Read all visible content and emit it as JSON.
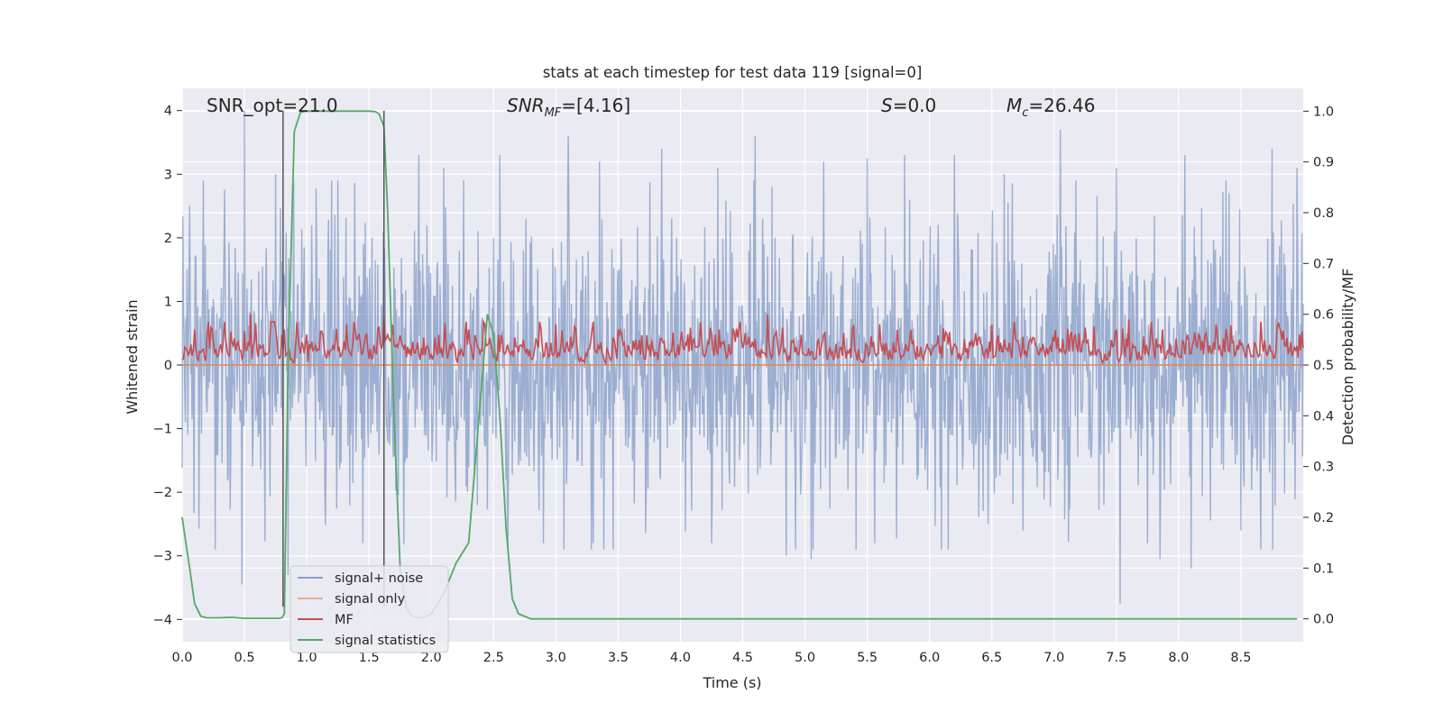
{
  "chart_data": {
    "type": "line",
    "title": "stats at each timestep for test data 119 [signal=0]",
    "xlabel": "Time (s)",
    "ylabel_left": "Whitened strain",
    "ylabel_right": "Detection probability/MF",
    "xlim": [
      0,
      9
    ],
    "ylim_left": [
      -4.35,
      4.35
    ],
    "ylim_right": [
      -0.045,
      1.045
    ],
    "x_ticks": [
      0.0,
      0.5,
      1.0,
      1.5,
      2.0,
      2.5,
      3.0,
      3.5,
      4.0,
      4.5,
      5.0,
      5.5,
      6.0,
      6.5,
      7.0,
      7.5,
      8.0,
      8.5
    ],
    "x_tick_labels": [
      "0.0",
      "0.5",
      "1.0",
      "1.5",
      "2.0",
      "2.5",
      "3.0",
      "3.5",
      "4.0",
      "4.5",
      "5.0",
      "5.5",
      "6.0",
      "6.5",
      "7.0",
      "7.5",
      "8.0",
      "8.5"
    ],
    "y_left_ticks": [
      4,
      3,
      2,
      1,
      0,
      -1,
      -2,
      -3,
      -4
    ],
    "y_left_tick_labels": [
      "4",
      "3",
      "2",
      "1",
      "0",
      "−1",
      "−2",
      "−3",
      "−4"
    ],
    "y_right_ticks": [
      1.0,
      0.9,
      0.8,
      0.7,
      0.6,
      0.5,
      0.4,
      0.3,
      0.2,
      0.1,
      0.0
    ],
    "y_right_tick_labels": [
      "1.0",
      "0.9",
      "0.8",
      "0.7",
      "0.6",
      "0.5",
      "0.4",
      "0.3",
      "0.2",
      "0.1",
      "0.0"
    ],
    "grid": true,
    "legend_position": "lower-left",
    "annotations": {
      "snr_opt": "SNR_opt=21.0",
      "snr_mf_var": "SNR",
      "snr_mf_sub": "MF",
      "snr_mf_val": "=[4.16]",
      "s_var": "S",
      "s_val": "=0.0",
      "mc_var": "M",
      "mc_sub": "c",
      "mc_val": "=26.46"
    },
    "vertical_lines": [
      0.81,
      1.62
    ],
    "series": [
      {
        "name": "signal+ noise",
        "color": "#4c72b0",
        "axis": "left",
        "style": "noise",
        "description_range": [
          -3.8,
          4.0
        ],
        "peaks": [
          [
            0.06,
            2.5
          ],
          [
            0.17,
            2.9
          ],
          [
            0.5,
            4.0
          ],
          [
            0.75,
            3.0
          ],
          [
            1.2,
            2.9
          ],
          [
            1.9,
            3.3
          ],
          [
            2.1,
            3.1
          ],
          [
            2.55,
            3.3
          ],
          [
            2.9,
            3.6
          ],
          [
            3.1,
            3.6
          ],
          [
            3.35,
            3.2
          ],
          [
            3.85,
            3.4
          ],
          [
            4.3,
            3.1
          ],
          [
            4.6,
            3.6
          ],
          [
            5.15,
            3.2
          ],
          [
            5.5,
            3.25
          ],
          [
            5.8,
            3.3
          ],
          [
            6.2,
            3.3
          ],
          [
            6.6,
            3.0
          ],
          [
            7.05,
            3.7
          ],
          [
            7.5,
            3.1
          ],
          [
            8.05,
            3.3
          ],
          [
            8.75,
            3.4
          ],
          [
            8.95,
            3.1
          ]
        ],
        "troughs": [
          [
            0.48,
            -3.45
          ],
          [
            0.85,
            -3.3
          ],
          [
            1.45,
            -2.8
          ],
          [
            2.9,
            -2.8
          ],
          [
            3.3,
            -2.8
          ],
          [
            4.25,
            -2.8
          ],
          [
            4.85,
            -3.0
          ],
          [
            5.05,
            -3.05
          ],
          [
            6.15,
            -2.9
          ],
          [
            6.75,
            -2.6
          ],
          [
            7.53,
            -3.75
          ],
          [
            7.75,
            -2.8
          ],
          [
            7.85,
            -3.05
          ],
          [
            8.1,
            -3.2
          ],
          [
            8.5,
            -2.6
          ]
        ]
      },
      {
        "name": "signal only",
        "color": "#dd8452",
        "axis": "left",
        "x": [
          0,
          9
        ],
        "y": [
          0,
          0
        ]
      },
      {
        "name": "MF",
        "color": "#c44e52",
        "axis": "right",
        "style": "noise",
        "description_range": [
          0.49,
          0.6
        ],
        "peaks": [
          [
            0.1,
            0.57
          ],
          [
            0.55,
            0.6
          ],
          [
            0.82,
            0.57
          ],
          [
            1.0,
            0.56
          ],
          [
            1.62,
            0.6
          ],
          [
            2.3,
            0.57
          ],
          [
            3.0,
            0.58
          ],
          [
            3.5,
            0.57
          ],
          [
            4.7,
            0.6
          ],
          [
            5.6,
            0.58
          ],
          [
            6.5,
            0.58
          ],
          [
            7.5,
            0.57
          ],
          [
            7.6,
            0.59
          ],
          [
            8.3,
            0.58
          ]
        ]
      },
      {
        "name": "signal statistics",
        "color": "#55a868",
        "axis": "right",
        "x": [
          0.0,
          0.03,
          0.06,
          0.1,
          0.15,
          0.2,
          0.3,
          0.4,
          0.5,
          0.6,
          0.7,
          0.78,
          0.8,
          0.82,
          0.85,
          0.9,
          0.95,
          1.0,
          1.1,
          1.2,
          1.3,
          1.4,
          1.5,
          1.55,
          1.58,
          1.62,
          1.65,
          1.7,
          1.75,
          1.8,
          1.85,
          1.9,
          1.95,
          2.0,
          2.1,
          2.2,
          2.3,
          2.35,
          2.4,
          2.45,
          2.5,
          2.55,
          2.6,
          2.65,
          2.7,
          2.8,
          3.0,
          4.0,
          5.0,
          6.0,
          7.0,
          8.0,
          8.95
        ],
        "y": [
          0.2,
          0.15,
          0.1,
          0.03,
          0.005,
          0.002,
          0.002,
          0.003,
          0.001,
          0.001,
          0.001,
          0.001,
          0.002,
          0.01,
          0.5,
          0.96,
          0.998,
          1.0,
          1.0,
          1.0,
          1.0,
          1.0,
          1.0,
          0.999,
          0.995,
          0.97,
          0.8,
          0.4,
          0.1,
          0.02,
          0.005,
          0.002,
          0.003,
          0.01,
          0.05,
          0.11,
          0.15,
          0.3,
          0.45,
          0.6,
          0.56,
          0.4,
          0.18,
          0.04,
          0.01,
          0.0,
          0.0,
          0.0,
          0.0,
          0.0,
          0.0,
          0.0,
          0.0
        ]
      }
    ]
  },
  "colors": {
    "background": "#eaeaf2",
    "grid": "#ffffff",
    "text": "#262626",
    "vline": "#555555"
  }
}
